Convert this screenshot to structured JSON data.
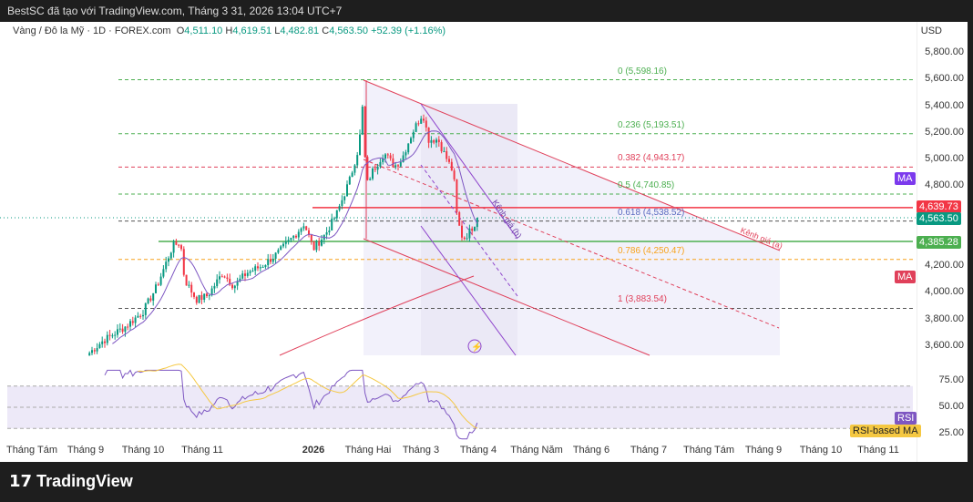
{
  "header": {
    "caption": "BestSC đã tạo với TradingView.com, Tháng 3 31, 2026 13:04 UTC+7"
  },
  "legend": {
    "symbol": "Vàng / Đô la Mỹ · 1D · FOREX.com",
    "o_label": "O",
    "open": "4,511.10",
    "h_label": "H",
    "high": "4,619.51",
    "l_label": "L",
    "low": "4,482.81",
    "c_label": "C",
    "close": "4,563.50",
    "change": "+52.39 (+1.16%)"
  },
  "axis": {
    "currency": "USD",
    "price_ticks": [
      "5,800.00",
      "5,600.00",
      "5,400.00",
      "5,200.00",
      "5,000.00",
      "4,800.00",
      "4,200.00",
      "4,000.00",
      "3,800.00",
      "3,600.00"
    ],
    "rsi_ticks": [
      "75.00",
      "50.00",
      "25.00"
    ],
    "x_ticks": [
      "Tháng Tám",
      "Tháng 9",
      "Tháng 10",
      "Tháng 11",
      "2026",
      "Tháng Hai",
      "Tháng 3",
      "Tháng 4",
      "Tháng Năm",
      "Tháng 6",
      "Tháng 7",
      "Tháng Tám",
      "Tháng 9",
      "Tháng 10",
      "Tháng 11"
    ]
  },
  "tags": {
    "ma_purple": "MA",
    "ma_red": "MA",
    "red_level": "4,639.73",
    "last_price": "4,563.50",
    "green_level": "4,385.28",
    "rsi": "RSI",
    "rsi_ma": "RSI-based MA"
  },
  "fib": [
    {
      "label": "0 (5,598.16)",
      "color": "#4caf50"
    },
    {
      "label": "0.236 (5,193.51)",
      "color": "#4caf50"
    },
    {
      "label": "0.382 (4,943.17)",
      "color": "#e0405a"
    },
    {
      "label": "0.5 (4,740.85)",
      "color": "#4caf50"
    },
    {
      "label": "0.618 (4,538.52)",
      "color": "#5b6bc0"
    },
    {
      "label": "0.786 (4,250.47)",
      "color": "#f7a21b"
    },
    {
      "label": "1 (3,883.54)",
      "color": "#e0405a"
    }
  ],
  "channels": {
    "a": "Kênh giá (a)",
    "b": "Kênh giá (b)"
  },
  "brand": "TradingView",
  "colors": {
    "up": "#089981",
    "down": "#f23645",
    "ma": "#7e57c2",
    "rsi_ma": "#f5c842"
  },
  "chart_data": {
    "type": "candlestick",
    "symbol": "XAUUSD",
    "timeframe": "1D",
    "close_path": [
      [
        "2025-09-03",
        3550
      ],
      [
        "2025-09-10",
        3640
      ],
      [
        "2025-09-22",
        3750
      ],
      [
        "2025-10-01",
        3860
      ],
      [
        "2025-10-08",
        4050
      ],
      [
        "2025-10-16",
        4350
      ],
      [
        "2025-10-20",
        4380
      ],
      [
        "2025-10-22",
        4100
      ],
      [
        "2025-10-28",
        3950
      ],
      [
        "2025-11-04",
        3980
      ],
      [
        "2025-11-12",
        4150
      ],
      [
        "2025-11-18",
        4050
      ],
      [
        "2025-11-25",
        4150
      ],
      [
        "2025-12-03",
        4200
      ],
      [
        "2025-12-12",
        4300
      ],
      [
        "2025-12-22",
        4450
      ],
      [
        "2025-12-26",
        4520
      ],
      [
        "2025-12-31",
        4330
      ],
      [
        "2026-01-08",
        4450
      ],
      [
        "2026-01-14",
        4600
      ],
      [
        "2026-01-21",
        4850
      ],
      [
        "2026-01-26",
        5100
      ],
      [
        "2026-01-28",
        5400
      ],
      [
        "2026-01-30",
        4800
      ],
      [
        "2026-02-03",
        4900
      ],
      [
        "2026-02-10",
        5050
      ],
      [
        "2026-02-16",
        4950
      ],
      [
        "2026-02-20",
        5000
      ],
      [
        "2026-02-26",
        5200
      ],
      [
        "2026-03-02",
        5350
      ],
      [
        "2026-03-05",
        5150
      ],
      [
        "2026-03-10",
        5150
      ],
      [
        "2026-03-13",
        5050
      ],
      [
        "2026-03-18",
        4900
      ],
      [
        "2026-03-20",
        4550
      ],
      [
        "2026-03-23",
        4400
      ],
      [
        "2026-03-26",
        4450
      ],
      [
        "2026-03-31",
        4563.5
      ]
    ],
    "ylim": [
      3520,
      5900
    ],
    "fib_levels": [
      5598.16,
      5193.51,
      4943.17,
      4740.85,
      4538.52,
      4250.47,
      3883.54
    ],
    "hlines": [
      4639.73,
      4385.28
    ],
    "rsi_ylim": [
      15,
      90
    ]
  }
}
